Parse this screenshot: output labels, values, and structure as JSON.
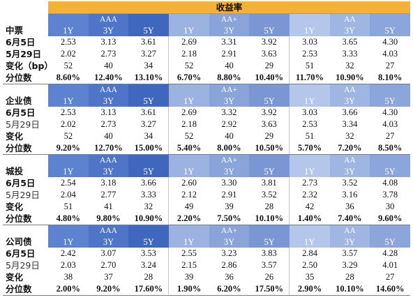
{
  "header": {
    "title": "收益率"
  },
  "grades": [
    "AAA",
    "AA+",
    "AA"
  ],
  "tenors": [
    "1Y",
    "3Y",
    "5Y"
  ],
  "sections": [
    {
      "name": "中票",
      "rows": [
        {
          "label": "6月5日",
          "values": [
            "2.53",
            "3.13",
            "3.61",
            "2.69",
            "3.31",
            "3.92",
            "3.03",
            "3.65",
            "4.30"
          ]
        },
        {
          "label": "5月29日",
          "values": [
            "2.02",
            "2.73",
            "3.27",
            "2.18",
            "2.91",
            "3.63",
            "2.53",
            "3.33",
            "4.03"
          ]
        },
        {
          "label": "变化（bp）",
          "values": [
            "52",
            "40",
            "34",
            "52",
            "40",
            "29",
            "51",
            "32",
            "27"
          ]
        },
        {
          "label": "分位数",
          "values": [
            "8.60%",
            "12.40%",
            "13.10%",
            "6.70%",
            "8.80%",
            "10.40%",
            "11.70%",
            "10.90%",
            "8.10%"
          ]
        }
      ]
    },
    {
      "name": "企业债",
      "rows": [
        {
          "label": "6月5日",
          "values": [
            "2.53",
            "3.13",
            "3.61",
            "2.69",
            "3.32",
            "3.92",
            "3.03",
            "3.66",
            "4.30"
          ]
        },
        {
          "label": "5月29日",
          "values": [
            "2.02",
            "2.73",
            "3.27",
            "2.18",
            "2.92",
            "3.63",
            "2.53",
            "3.34",
            "4.03"
          ]
        },
        {
          "label": "变化",
          "values": [
            "52",
            "40",
            "34",
            "52",
            "40",
            "29",
            "51",
            "32",
            "27"
          ]
        },
        {
          "label": "分位数",
          "values": [
            "9.20%",
            "12.70%",
            "15.00%",
            "5.40%",
            "8.00%",
            "10.50%",
            "5.70%",
            "7.20%",
            "8.50%"
          ]
        }
      ]
    },
    {
      "name": "城投",
      "rows": [
        {
          "label": "6月5日",
          "values": [
            "2.54",
            "3.18",
            "3.66",
            "2.60",
            "3.30",
            "3.81",
            "2.73",
            "3.52",
            "4.08"
          ]
        },
        {
          "label": "5月29日",
          "values": [
            "2.04",
            "2.77",
            "3.33",
            "2.12",
            "2.91",
            "3.52",
            "2.32",
            "3.16",
            "3.78"
          ]
        },
        {
          "label": "变化",
          "values": [
            "51",
            "41",
            "32",
            "49",
            "39",
            "28",
            "42",
            "36",
            "30"
          ]
        },
        {
          "label": "分位数",
          "values": [
            "4.80%",
            "9.80%",
            "10.90%",
            "2.20%",
            "7.50%",
            "10.10%",
            "1.40%",
            "7.40%",
            "9.60%"
          ]
        }
      ]
    },
    {
      "name": "公司债",
      "rows": [
        {
          "label": "6月5日",
          "values": [
            "2.42",
            "3.07",
            "3.53",
            "2.55",
            "3.23",
            "3.83",
            "2.84",
            "3.57",
            "4.28"
          ]
        },
        {
          "label": "5月29日",
          "values": [
            "2.03",
            "2.70",
            "3.24",
            "2.15",
            "2.86",
            "3.57",
            "2.50",
            "3.29",
            "4.01"
          ]
        },
        {
          "label": "变化",
          "values": [
            "38",
            "37",
            "28",
            "39",
            "36",
            "26",
            "35",
            "28",
            "27"
          ]
        },
        {
          "label": "分位数",
          "values": [
            "2.00%",
            "9.20%",
            "17.60%",
            "1.90%",
            "6.20%",
            "17.50%",
            "2.90%",
            "10.10%",
            "14.60%"
          ]
        }
      ]
    }
  ]
}
